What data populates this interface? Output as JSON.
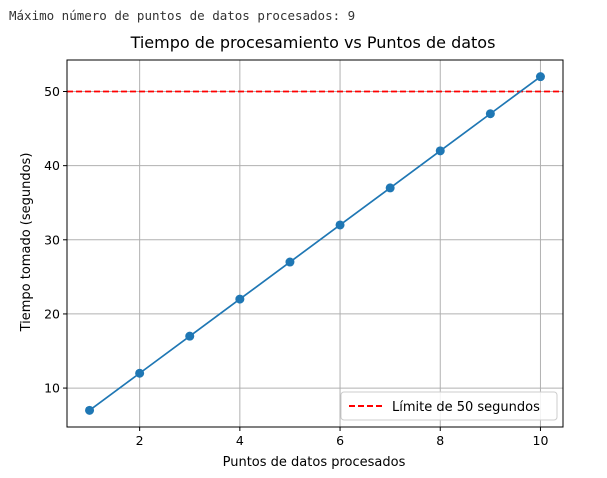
{
  "console": {
    "text": "Máximo número de puntos de datos procesados: 9"
  },
  "colors": {
    "series": "#1f77b4",
    "threshold": "#ff0000",
    "grid": "#b0b0b0"
  },
  "chart_data": {
    "type": "line",
    "title": "Tiempo de procesamiento vs Puntos de datos",
    "xlabel": "Puntos de datos procesados",
    "ylabel": "Tiempo tomado (segundos)",
    "xlim": [
      0.55,
      10.45
    ],
    "ylim": [
      4.75,
      54.25
    ],
    "xticks": [
      2,
      4,
      6,
      8,
      10
    ],
    "yticks": [
      10,
      20,
      30,
      40,
      50
    ],
    "grid": true,
    "legend_position": "lower right",
    "series": [
      {
        "x": [
          1,
          2,
          3,
          4,
          5,
          6,
          7,
          8,
          9,
          10
        ],
        "y": [
          7,
          12,
          17,
          22,
          27,
          32,
          37,
          42,
          47,
          52
        ],
        "marker": "circle",
        "style": "solid"
      }
    ],
    "reference_lines": [
      {
        "axis": "y",
        "value": 50,
        "style": "dashed",
        "label": "Límite de 50 segundos"
      }
    ]
  }
}
